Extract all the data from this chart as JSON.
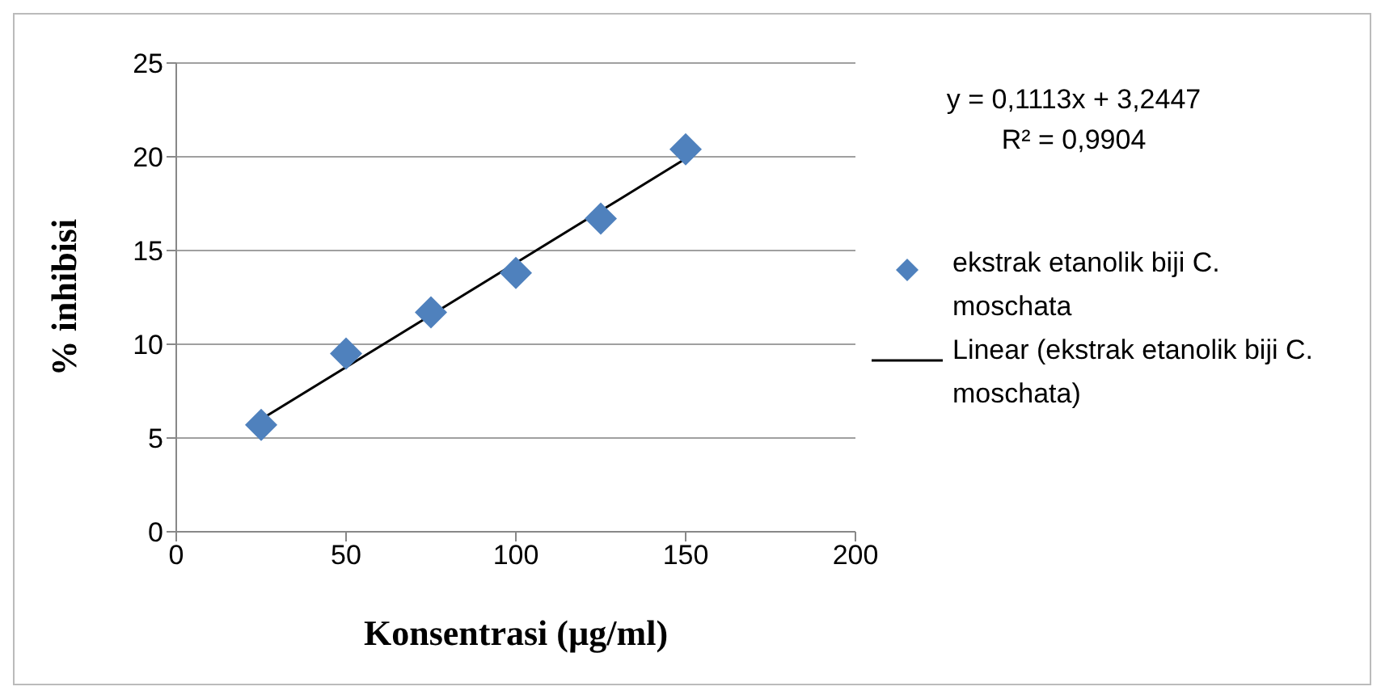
{
  "chart_data": {
    "type": "scatter",
    "xlabel": "Konsentrasi (µg/ml)",
    "ylabel": "% inhibisi",
    "annotations": [
      "y = 0,1113x + 3,2447",
      "R² = 0,9904"
    ],
    "xlim": [
      0,
      200
    ],
    "xticks": [
      0,
      50,
      100,
      150,
      200
    ],
    "ylim": [
      0,
      25
    ],
    "yticks": [
      0,
      5,
      10,
      15,
      20,
      25
    ],
    "grid": "y",
    "legend": "right",
    "marker": "diamond",
    "series": [
      {
        "name": "ekstrak etanolik biji C. moschata",
        "color": "#4f81bd",
        "x": [
          25,
          50,
          75,
          100,
          125,
          150
        ],
        "values": [
          5.7,
          9.5,
          11.7,
          13.8,
          16.7,
          20.4
        ]
      },
      {
        "name": "Linear (ekstrak etanolik biji C. moschata)",
        "type": "line",
        "color": "#000000",
        "line_style": "solid",
        "marker": "none",
        "x": [
          25,
          150
        ],
        "values": [
          6.0,
          19.9
        ]
      }
    ]
  }
}
